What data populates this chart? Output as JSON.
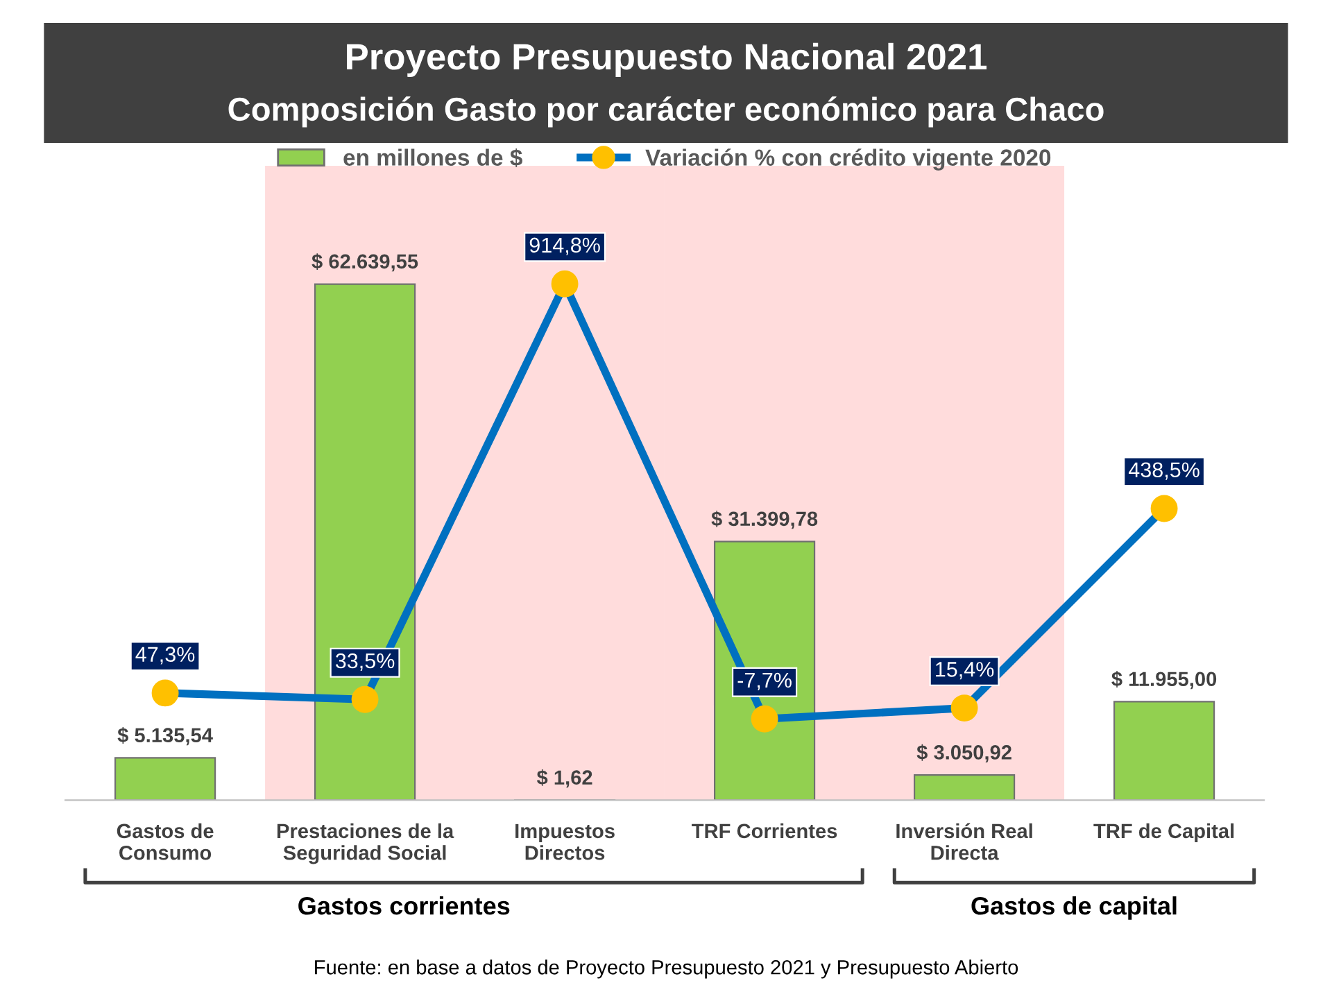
{
  "chart_data": {
    "type": "bar",
    "title": "Proyecto Presupuesto Nacional 2021",
    "subtitle": "Composición Gasto por carácter económico para Chaco",
    "categories": [
      "Gastos de\nConsumo",
      "Prestaciones de la\nSeguridad Social",
      "Impuestos\nDirectos",
      "TRF Corrientes",
      "Inversión Real\nDirecta",
      "TRF de Capital"
    ],
    "series": [
      {
        "name": "en millones de $",
        "color": "#92d050",
        "values": [
          5135.54,
          62639.55,
          1.62,
          31399.78,
          3050.92,
          11955.0
        ],
        "value_labels": [
          "$ 5.135,54",
          "$ 62.639,55",
          "$ 1,62",
          "$ 31.399,78",
          "$ 3.050,92",
          "$ 11.955,00"
        ]
      },
      {
        "name": "Variación % con crédito vigente 2020",
        "type": "line",
        "axis": "y2",
        "color": "#0070c0",
        "marker": "circle",
        "values": [
          47.3,
          33.5,
          914.8,
          -7.7,
          15.4,
          438.5
        ],
        "value_labels": [
          "47,3%",
          "33,5%",
          "914,8%",
          "-7,7%",
          "15,4%",
          "438,5%"
        ]
      }
    ],
    "ylim": [
      0,
      77000
    ],
    "y2lim": [
      -180,
      1165
    ],
    "tick_labels": "x",
    "grid": false,
    "legend": "top",
    "bands": [
      {
        "axis": "x",
        "from": "Prestaciones de la\nSeguridad Social",
        "to": "Impuestos\nDirectos",
        "color": "#ffdcdc"
      },
      {
        "axis": "x",
        "from": "TRF Corrientes",
        "to": "Inversión Real\nDirecta",
        "color": "#ffdcdc"
      }
    ],
    "annotations": [
      "Fuente: en base a datos de Proyecto Presupuesto 2021 y Presupuesto Abierto",
      "Gastos corrientes",
      "Gastos de capital"
    ]
  }
}
